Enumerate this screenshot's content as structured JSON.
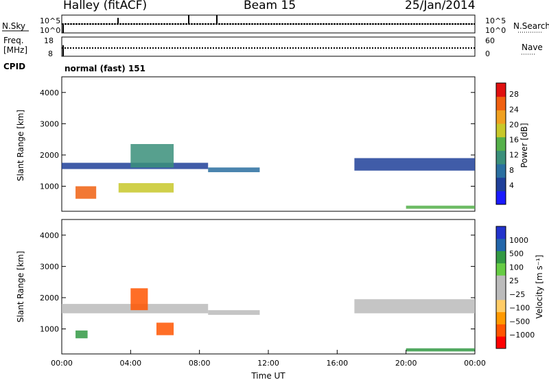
{
  "header": {
    "station": "Halley (fitACF)",
    "beam": "Beam 15",
    "date": "25/Jan/2014"
  },
  "panels": {
    "nsky": {
      "left_label": "N.Sky",
      "right_label": "N.Search",
      "left_ticks": [
        "10^5",
        "10^0"
      ],
      "right_ticks": [
        "10^5",
        "10^0"
      ]
    },
    "freq": {
      "left_label_1": "Freq.",
      "left_label_2": "[MHz]",
      "right_label": "Nave",
      "left_ticks": [
        "18",
        "8"
      ],
      "right_ticks": [
        "60",
        "0"
      ]
    },
    "cpid": {
      "label": "CPID",
      "value": "normal (fast) 151"
    }
  },
  "colors": {
    "power_bar": [
      "#1a1aff",
      "#1f3f99",
      "#2a6fa0",
      "#3a8f7a",
      "#55b04a",
      "#c8c82a",
      "#f0a020",
      "#f06010",
      "#e01010"
    ],
    "velocity_bar": [
      "#ff0000",
      "#ff5500",
      "#ff9900",
      "#ffcc66",
      "#bbbbbb",
      "#bbbbbb",
      "#66cc44",
      "#339944",
      "#2266aa",
      "#2233cc"
    ]
  },
  "chart_data": [
    {
      "type": "heatmap",
      "name_hint": "power",
      "ylabel": "Slant Range [km]",
      "yticks": [
        "4000",
        "3000",
        "2000",
        "1000"
      ],
      "ylim": [
        200,
        4500
      ],
      "xlim": [
        0,
        24
      ],
      "colorbar_label": "Power [dB]",
      "colorbar_ticks": [
        "28",
        "24",
        "20",
        "16",
        "12",
        "8",
        "4"
      ],
      "colorbar_range": [
        0,
        32
      ],
      "bands": [
        {
          "x": [
            0,
            8.5
          ],
          "y": [
            1550,
            1750
          ],
          "color": "#1f3f99"
        },
        {
          "x": [
            4,
            6.5
          ],
          "y": [
            1600,
            2350
          ],
          "color": "#3a8f7a"
        },
        {
          "x": [
            8.5,
            11.5
          ],
          "y": [
            1450,
            1600
          ],
          "color": "#2a6fa0"
        },
        {
          "x": [
            17,
            24
          ],
          "y": [
            1500,
            1900
          ],
          "color": "#1f3f99"
        },
        {
          "x": [
            0.8,
            2
          ],
          "y": [
            600,
            1000
          ],
          "color": "#f06010"
        },
        {
          "x": [
            3.3,
            6.5
          ],
          "y": [
            800,
            1100
          ],
          "color": "#c8c82a"
        },
        {
          "x": [
            20,
            24
          ],
          "y": [
            280,
            380
          ],
          "color": "#55b04a"
        }
      ]
    },
    {
      "type": "heatmap",
      "name_hint": "velocity",
      "ylabel": "Slant Range [km]",
      "xlabel": "Time UT",
      "yticks": [
        "4000",
        "3000",
        "2000",
        "1000"
      ],
      "xticks": [
        "00:00",
        "04:00",
        "08:00",
        "12:00",
        "16:00",
        "20:00",
        "00:00"
      ],
      "ylim": [
        200,
        4500
      ],
      "xlim": [
        0,
        24
      ],
      "colorbar_label": "Velocity [m s⁻¹]",
      "colorbar_ticks": [
        "1000",
        "500",
        "100",
        "25",
        "−25",
        "−100",
        "−500",
        "−1000"
      ],
      "bands": [
        {
          "x": [
            0,
            8.5
          ],
          "y": [
            1500,
            1800
          ],
          "color": "#bbbbbb"
        },
        {
          "x": [
            4,
            5
          ],
          "y": [
            1600,
            2300
          ],
          "color": "#ff5500"
        },
        {
          "x": [
            8.5,
            11.5
          ],
          "y": [
            1450,
            1600
          ],
          "color": "#bbbbbb"
        },
        {
          "x": [
            17,
            24
          ],
          "y": [
            1500,
            1950
          ],
          "color": "#bbbbbb"
        },
        {
          "x": [
            5.5,
            6.5
          ],
          "y": [
            800,
            1200
          ],
          "color": "#ff5500"
        },
        {
          "x": [
            0.8,
            1.5
          ],
          "y": [
            700,
            950
          ],
          "color": "#339944"
        },
        {
          "x": [
            20,
            24
          ],
          "y": [
            280,
            380
          ],
          "color": "#339944"
        }
      ]
    }
  ]
}
